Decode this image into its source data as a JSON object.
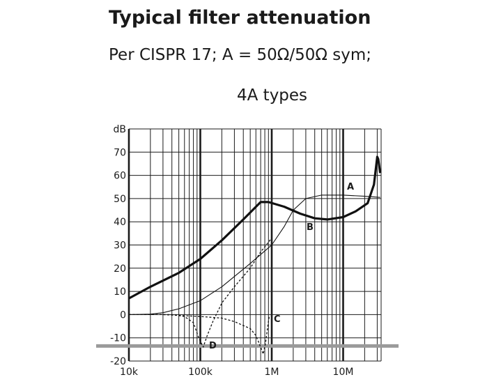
{
  "chart_data": {
    "type": "line",
    "title": "Typical filter attenuation",
    "subtitle": "Per CISPR 17; A = 50Ω/50Ω sym;",
    "subtitle2": "4A types",
    "ylabel": "dB",
    "xlabel": "",
    "x_scale": "log",
    "xlim": [
      10000,
      35000000
    ],
    "ylim": [
      -20,
      80
    ],
    "grid": true,
    "x_ticks": [
      {
        "value": 10000,
        "label": "10k"
      },
      {
        "value": 100000,
        "label": "100k"
      },
      {
        "value": 1000000,
        "label": "1M"
      },
      {
        "value": 10000000,
        "label": "10M"
      }
    ],
    "y_ticks": [
      {
        "value": 80,
        "label": "dB"
      },
      {
        "value": 70,
        "label": "70"
      },
      {
        "value": 60,
        "label": "60"
      },
      {
        "value": 50,
        "label": "50"
      },
      {
        "value": 40,
        "label": "40"
      },
      {
        "value": 30,
        "label": "30"
      },
      {
        "value": 20,
        "label": "20"
      },
      {
        "value": 10,
        "label": "10"
      },
      {
        "value": 0,
        "label": "0"
      },
      {
        "value": -10,
        "label": "-10"
      },
      {
        "value": -20,
        "label": "-20"
      }
    ],
    "reference_line_y": -13.5,
    "series": [
      {
        "name": "A",
        "style": "thin",
        "points": [
          [
            10000,
            0
          ],
          [
            20000,
            0.2
          ],
          [
            30000,
            0.8
          ],
          [
            50000,
            2.5
          ],
          [
            100000,
            6
          ],
          [
            200000,
            12
          ],
          [
            500000,
            22
          ],
          [
            1000000,
            30
          ],
          [
            1500000,
            38
          ],
          [
            2000000,
            45
          ],
          [
            3000000,
            50
          ],
          [
            5000000,
            51.5
          ],
          [
            10000000,
            51.5
          ],
          [
            20000000,
            51
          ],
          [
            33000000,
            50.5
          ]
        ]
      },
      {
        "name": "B",
        "style": "bold",
        "points": [
          [
            10000,
            7
          ],
          [
            20000,
            12
          ],
          [
            50000,
            18
          ],
          [
            100000,
            24
          ],
          [
            200000,
            32
          ],
          [
            400000,
            41
          ],
          [
            700000,
            48.5
          ],
          [
            900000,
            48.5
          ],
          [
            1500000,
            46.5
          ],
          [
            2500000,
            43.5
          ],
          [
            4000000,
            41.5
          ],
          [
            6000000,
            41
          ],
          [
            10000000,
            42
          ],
          [
            15000000,
            44.5
          ],
          [
            22000000,
            48
          ],
          [
            27000000,
            56
          ],
          [
            30000000,
            68
          ],
          [
            31000000,
            67
          ],
          [
            33000000,
            61
          ]
        ]
      },
      {
        "name": "C",
        "style": "dashed",
        "points": [
          [
            10000,
            0
          ],
          [
            30000,
            0
          ],
          [
            100000,
            -0.8
          ],
          [
            200000,
            -1.5
          ],
          [
            300000,
            -3
          ],
          [
            500000,
            -6
          ],
          [
            600000,
            -9
          ],
          [
            700000,
            -14
          ],
          [
            760000,
            -17
          ],
          [
            820000,
            -12
          ],
          [
            880000,
            -5
          ],
          [
            920000,
            -1
          ],
          [
            960000,
            -0.5
          ]
        ]
      },
      {
        "name": "D",
        "style": "dashed",
        "points": [
          [
            10000,
            0
          ],
          [
            40000,
            0
          ],
          [
            60000,
            -0.8
          ],
          [
            80000,
            -3.5
          ],
          [
            95000,
            -10
          ],
          [
            110000,
            -14
          ],
          [
            125000,
            -9
          ],
          [
            150000,
            -3
          ],
          [
            200000,
            5
          ],
          [
            300000,
            12
          ],
          [
            500000,
            20
          ],
          [
            700000,
            27
          ],
          [
            1000000,
            33
          ]
        ]
      }
    ]
  }
}
